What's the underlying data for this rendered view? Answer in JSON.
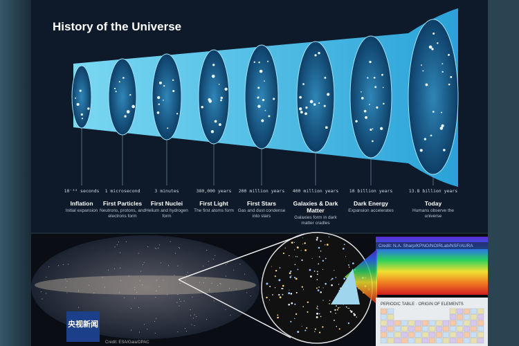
{
  "title": "History of the Universe",
  "stages": [
    {
      "time": "10⁻³² seconds",
      "name": "Inflation",
      "description": "Initial expansion"
    },
    {
      "time": "1 microsecond",
      "name": "First Particles",
      "description": "Neutrons, protons, and electrons form"
    },
    {
      "time": "3 minutes",
      "name": "First Nuclei",
      "description": "Helium and hydrogen form"
    },
    {
      "time": "380,000 years",
      "name": "First Light",
      "description": "The first atoms form"
    },
    {
      "time": "200 million years",
      "name": "First Stars",
      "description": "Gas and dust condense into stars"
    },
    {
      "time": "400 million years",
      "name": "Galaxies & Dark Matter",
      "description": "Galaxies form in dark matter cradles"
    },
    {
      "time": "10 billion years",
      "name": "Dark Energy",
      "description": "Expansion accelerates"
    },
    {
      "time": "13.8 billion years",
      "name": "Today",
      "description": "Humans observe the universe"
    }
  ],
  "spectrum_credit": "Credit: N.A. Sharp/KPNO/NOIRLab/NSF/AURA",
  "periodic_table_title": "PERIODIC TABLE · ORIGIN OF ELEMENTS",
  "logo": "央视新闻",
  "gaia_credit": "Credit: ESA/Gaia/DPAC"
}
